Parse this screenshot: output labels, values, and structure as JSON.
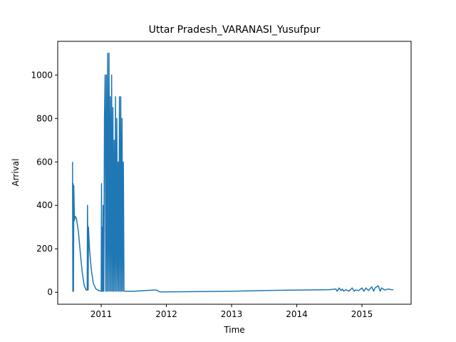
{
  "chart_data": {
    "type": "line",
    "title": "Uttar Pradesh_VARANASI_Yusufpur",
    "x_label": "Time",
    "y_label": "Arrival",
    "series": [
      {
        "name": "Arrival",
        "color": "#1f77b4",
        "x": [
          2010.56,
          2010.565,
          2010.57,
          2010.575,
          2010.58,
          2010.59,
          2010.6,
          2010.62,
          2010.65,
          2010.68,
          2010.71,
          2010.74,
          2010.77,
          2010.785,
          2010.79,
          2010.8,
          2010.805,
          2010.82,
          2010.85,
          2010.88,
          2010.92,
          2010.96,
          2011.0,
          2011.005,
          2011.01,
          2011.02,
          2011.025,
          2011.03,
          2011.04,
          2011.05,
          2011.06,
          2011.07,
          2011.08,
          2011.09,
          2011.1,
          2011.11,
          2011.12,
          2011.13,
          2011.14,
          2011.15,
          2011.16,
          2011.17,
          2011.18,
          2011.19,
          2011.2,
          2011.21,
          2011.22,
          2011.23,
          2011.24,
          2011.25,
          2011.26,
          2011.27,
          2011.28,
          2011.29,
          2011.3,
          2011.31,
          2011.32,
          2011.33,
          2011.34,
          2011.35,
          2011.5,
          2011.8,
          2011.85,
          2011.9,
          2012.0,
          2012.5,
          2013.0,
          2013.5,
          2014.0,
          2014.5,
          2014.6,
          2014.62,
          2014.65,
          2014.68,
          2014.7,
          2014.72,
          2014.75,
          2014.8,
          2014.85,
          2014.88,
          2014.9,
          2014.95,
          2015.0,
          2015.03,
          2015.06,
          2015.1,
          2015.15,
          2015.18,
          2015.2,
          2015.25,
          2015.28,
          2015.3,
          2015.35,
          2015.4,
          2015.45,
          2015.48
        ],
        "values": [
          600,
          5,
          500,
          5,
          490,
          330,
          350,
          340,
          280,
          180,
          90,
          30,
          10,
          10,
          400,
          10,
          300,
          200,
          100,
          40,
          15,
          8,
          5,
          500,
          5,
          300,
          5,
          400,
          5,
          800,
          1000,
          5,
          1000,
          5,
          1100,
          5,
          1100,
          5,
          900,
          5,
          1000,
          5,
          850,
          5,
          700,
          5,
          900,
          5,
          800,
          5,
          600,
          5,
          900,
          5,
          900,
          5,
          800,
          5,
          600,
          5,
          5,
          10,
          10,
          2,
          2,
          3,
          5,
          8,
          10,
          12,
          15,
          5,
          20,
          8,
          15,
          5,
          12,
          5,
          20,
          5,
          10,
          8,
          20,
          5,
          20,
          8,
          25,
          5,
          20,
          30,
          5,
          20,
          10,
          15,
          12,
          12
        ]
      }
    ],
    "xlim": [
      2010.333,
      2015.754
    ],
    "xticks": [
      2011,
      2012,
      2013,
      2014,
      2015
    ],
    "ylim": [
      -55,
      1155
    ],
    "yticks": [
      0,
      200,
      400,
      600,
      800,
      1000
    ]
  }
}
